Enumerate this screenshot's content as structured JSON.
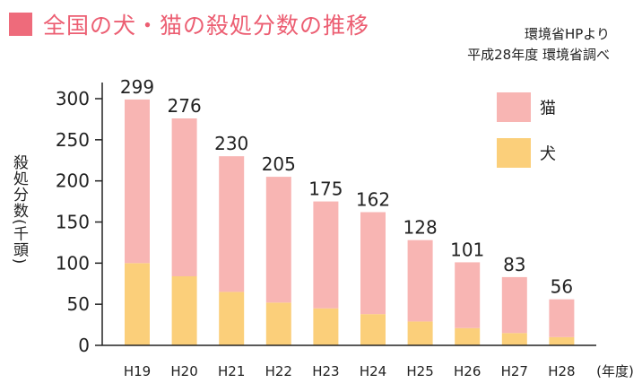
{
  "title": "全国の犬・猫の殺処分数の推移",
  "source_line1": "環境省HPより",
  "source_line2": "平成28年度 環境省調べ",
  "chart_data": {
    "type": "bar",
    "stacked": true,
    "title": "全国の犬・猫の殺処分数の推移",
    "ylabel": "殺処分数(千頭)",
    "xunit": "(年度)",
    "categories": [
      "H19",
      "H20",
      "H21",
      "H22",
      "H23",
      "H24",
      "H25",
      "H26",
      "H27",
      "H28"
    ],
    "totals": [
      299,
      276,
      230,
      205,
      175,
      162,
      128,
      101,
      83,
      56
    ],
    "series": [
      {
        "name": "犬",
        "color": "#fbcf7a",
        "values": [
          100,
          84,
          65,
          52,
          45,
          38,
          29,
          21,
          15,
          10
        ]
      },
      {
        "name": "猫",
        "color": "#f8b5b3",
        "values": [
          199,
          192,
          165,
          153,
          130,
          124,
          99,
          80,
          68,
          46
        ]
      }
    ],
    "yticks": [
      0,
      50,
      100,
      150,
      200,
      250,
      300
    ],
    "ylim": [
      0,
      300
    ],
    "legend": {
      "position": "top-right",
      "order": [
        "猫",
        "犬"
      ]
    },
    "grid": false
  }
}
